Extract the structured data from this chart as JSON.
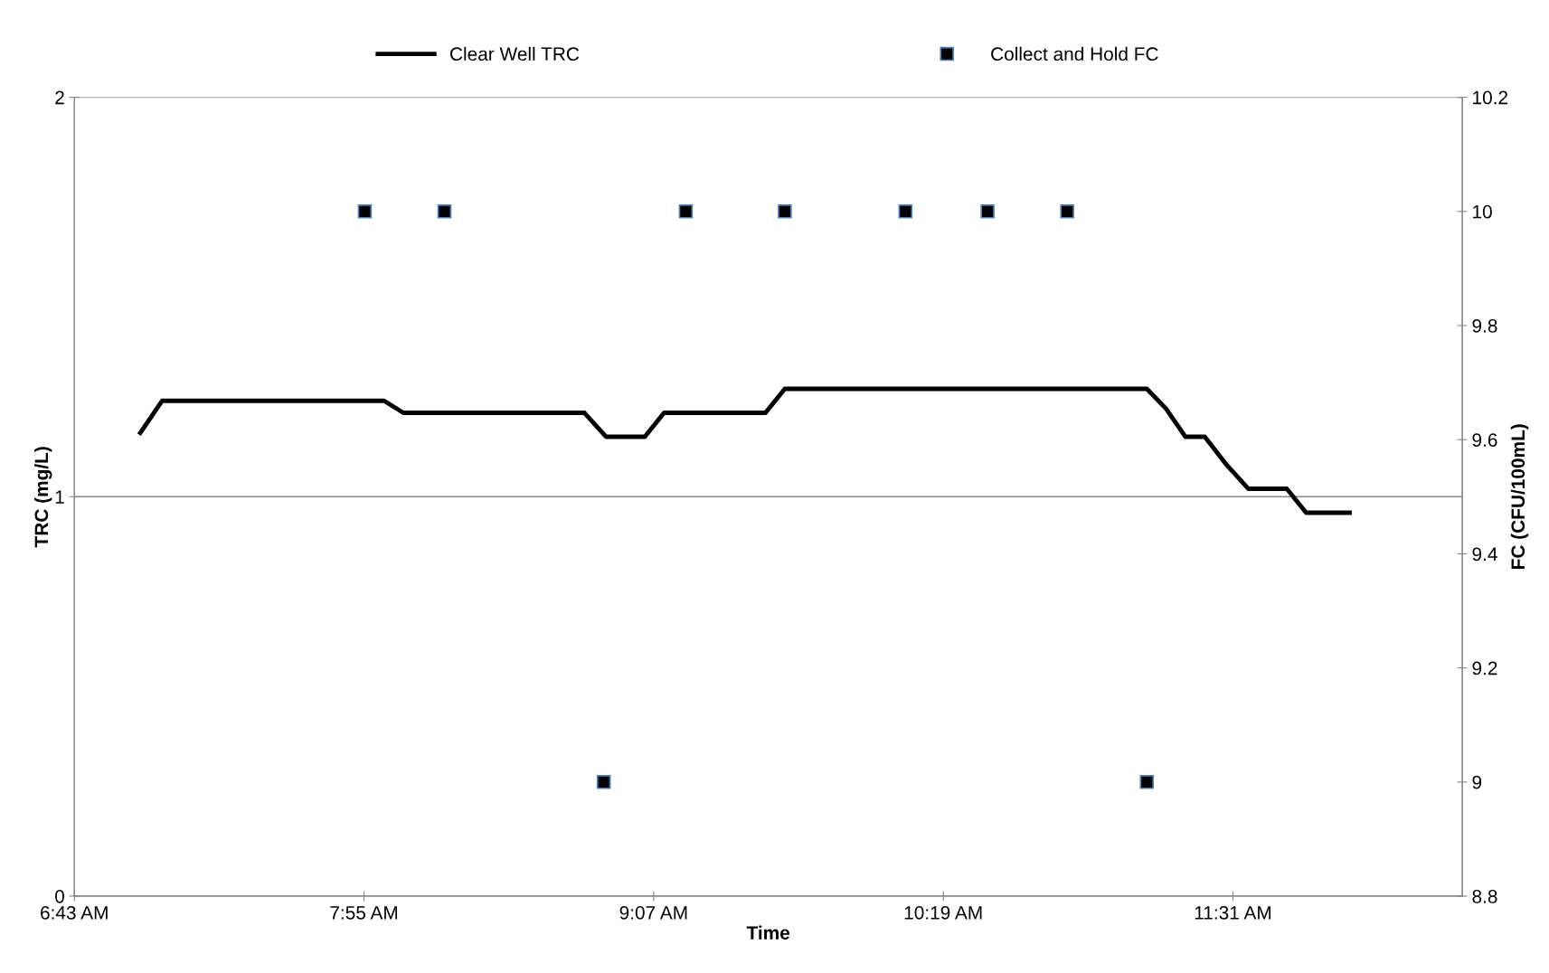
{
  "chart_data": {
    "type": "line",
    "xlabel": "Time",
    "ylabel": "TRC (mg/L)",
    "y2label": "FC (CFU/100mL)",
    "xlim": [
      6.7167,
      12.4667
    ],
    "xticks": [
      {
        "value": 6.7167,
        "label": "6:43 AM"
      },
      {
        "value": 7.9167,
        "label": "7:55 AM"
      },
      {
        "value": 9.1167,
        "label": "9:07 AM"
      },
      {
        "value": 10.3167,
        "label": "10:19 AM"
      },
      {
        "value": 11.5167,
        "label": "11:31 AM"
      }
    ],
    "ylim": [
      0,
      2
    ],
    "yticks": [
      0,
      1,
      2
    ],
    "y2lim": [
      8.8,
      10.2
    ],
    "y2ticks": [
      8.8,
      9,
      9.2,
      9.4,
      9.6,
      9.8,
      10,
      10.2
    ],
    "grid": "y",
    "legend": "top",
    "series": [
      {
        "name": "Clear Well TRC",
        "color": "#000000",
        "marker": "none",
        "line_style": "solid",
        "x": [
          6.99,
          7.08,
          8.0,
          8.08,
          8.83,
          8.92,
          9.08,
          9.16,
          9.58,
          9.66,
          11.16,
          11.24,
          11.32,
          11.4,
          11.49,
          11.58,
          11.74,
          11.82,
          12.0
        ],
        "values": [
          1.16,
          1.24,
          1.24,
          1.21,
          1.21,
          1.15,
          1.15,
          1.21,
          1.21,
          1.27,
          1.27,
          1.22,
          1.15,
          1.15,
          1.08,
          1.02,
          1.02,
          0.96,
          0.96
        ]
      },
      {
        "name": "Collect and Hold FC",
        "type": "scatter",
        "axis": "y2",
        "color": "#000000",
        "marker": "square",
        "x": [
          7.92,
          8.25,
          8.91,
          9.25,
          9.66,
          10.16,
          10.5,
          10.83,
          11.16
        ],
        "values": [
          10,
          10,
          9,
          10,
          10,
          10,
          10,
          10,
          9
        ]
      }
    ]
  }
}
